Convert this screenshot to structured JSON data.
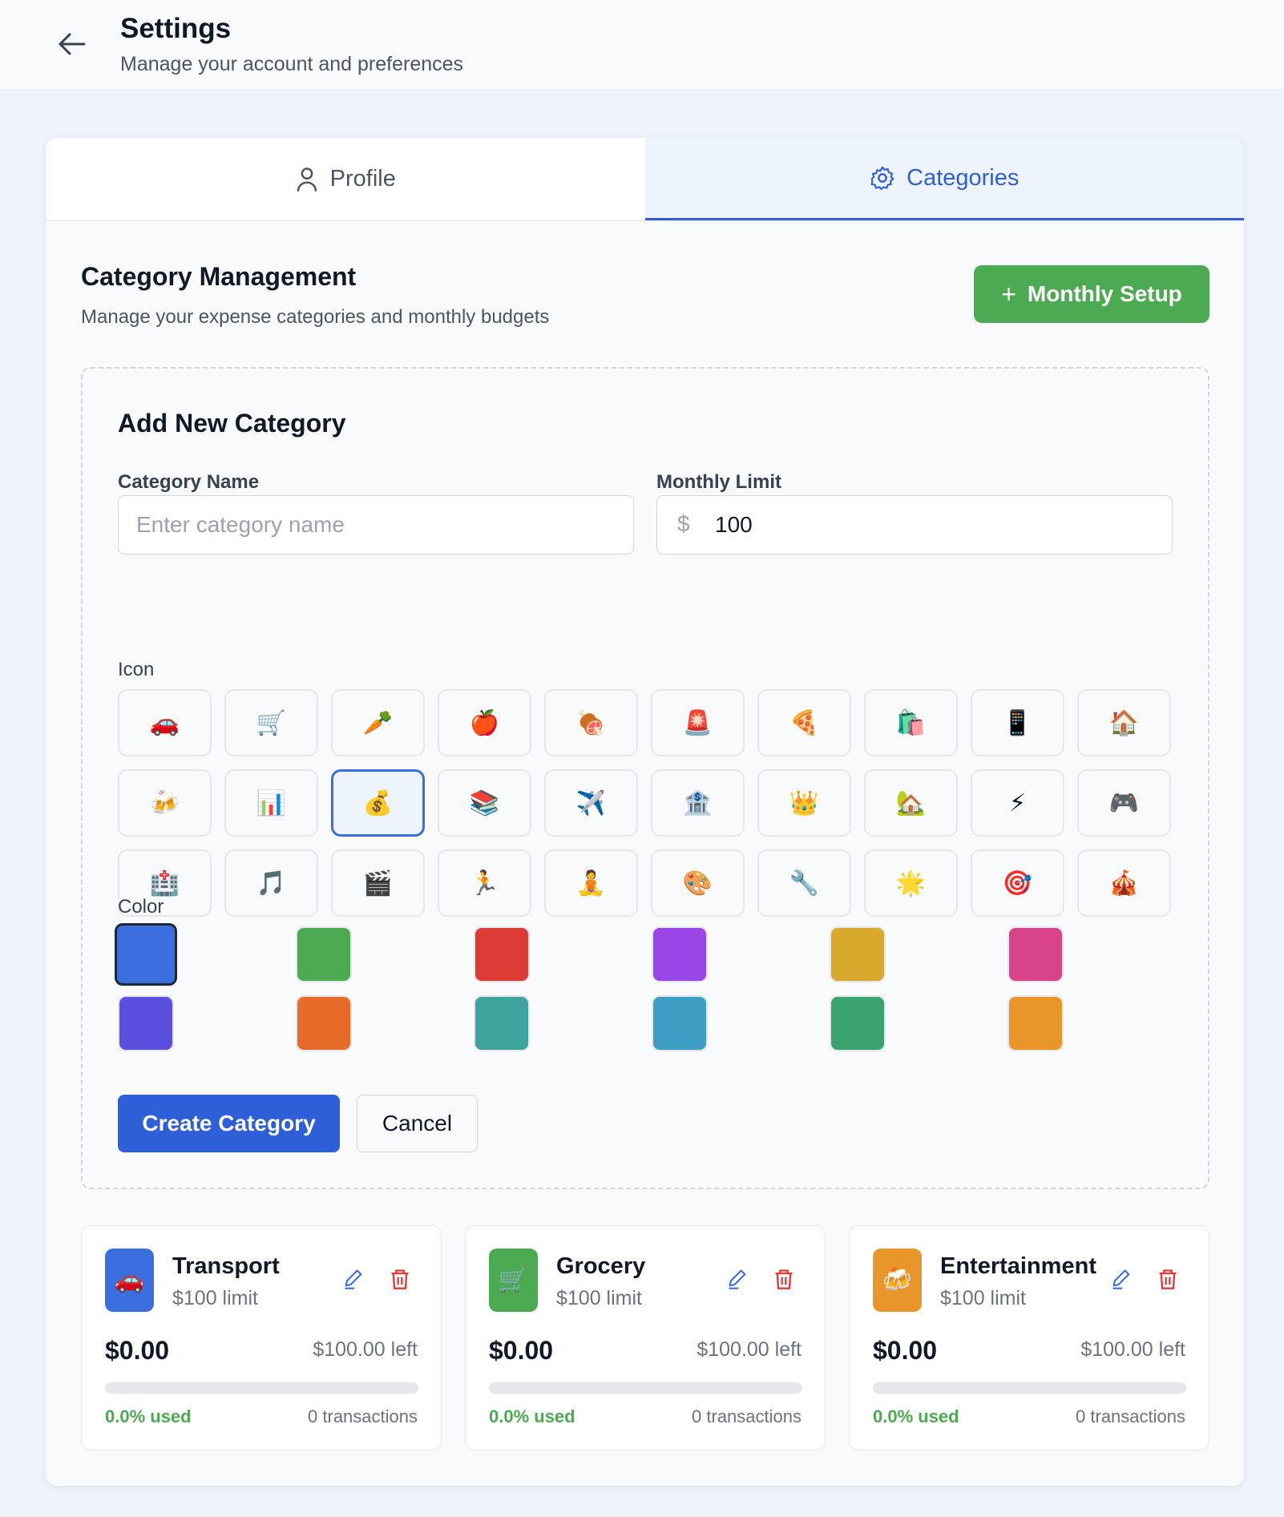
{
  "header": {
    "title": "Settings",
    "subtitle": "Manage your account and preferences"
  },
  "tabs": [
    {
      "label": "Profile",
      "icon": "user-icon",
      "active": false
    },
    {
      "label": "Categories",
      "icon": "gear-icon",
      "active": true
    }
  ],
  "section": {
    "title": "Category Management",
    "subtitle": "Manage your expense categories and monthly budgets",
    "setup_label": "Monthly Setup"
  },
  "form": {
    "title": "Add New Category",
    "name_label": "Category Name",
    "name_placeholder": "Enter category name",
    "name_value": "",
    "limit_label": "Monthly Limit",
    "currency": "$",
    "limit_value": "100",
    "icon_label": "Icon",
    "color_label": "Color",
    "create_label": "Create Category",
    "cancel_label": "Cancel",
    "icons": [
      "🚗",
      "🛒",
      "🥕",
      "🍎",
      "🍖",
      "🚨",
      "🍕",
      "🛍️",
      "📱",
      "🏠",
      "🍻",
      "📊",
      "💰",
      "📚",
      "✈️",
      "🏦",
      "👑",
      "🏡",
      "⚡",
      "🎮",
      "🏥",
      "🎵",
      "🎬",
      "🏃",
      "🧘",
      "🎨",
      "🔧",
      "🌟",
      "🎯",
      "🎪"
    ],
    "selected_icon": 12,
    "colors": [
      "#3b6fe0",
      "#4caa52",
      "#dc3b36",
      "#9a45e8",
      "#d8a92c",
      "#d8438a",
      "#5b4fe0",
      "#e66a28",
      "#3fa39e",
      "#3f9ec4",
      "#3aa370",
      "#e8962a"
    ],
    "selected_color": 0
  },
  "categories": [
    {
      "name": "Transport",
      "icon": "🚗",
      "color": "#3b6fe0",
      "limit": "$100 limit",
      "spent": "$0.00",
      "left": "$100.00 left",
      "used_pct": 0,
      "used": "0.0% used",
      "transactions": "0 transactions"
    },
    {
      "name": "Grocery",
      "icon": "🛒",
      "color": "#4caa52",
      "limit": "$100 limit",
      "spent": "$0.00",
      "left": "$100.00 left",
      "used_pct": 0,
      "used": "0.0% used",
      "transactions": "0 transactions"
    },
    {
      "name": "Entertainment",
      "icon": "🍻",
      "color": "#e8962a",
      "limit": "$100 limit",
      "spent": "$0.00",
      "left": "$100.00 left",
      "used_pct": 0,
      "used": "0.0% used",
      "transactions": "0 transactions"
    }
  ]
}
